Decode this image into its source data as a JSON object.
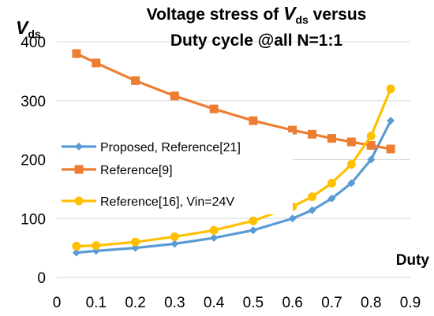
{
  "chart_data": {
    "type": "line",
    "title_line1": "Voltage stress of ",
    "title_var": "V",
    "title_sub": "ds",
    "title_line1_end": " versus",
    "title_line2": "Duty cycle @all N=1:1",
    "ylabel_var": "V",
    "ylabel_sub": "ds",
    "xlabel": "Duty",
    "xlim": [
      0,
      0.9
    ],
    "ylim": [
      0,
      400
    ],
    "xticks": [
      "0",
      "0.1",
      "0.2",
      "0.3",
      "0.4",
      "0.5",
      "0.6",
      "0.7",
      "0.8",
      "0.9"
    ],
    "yticks": [
      "0",
      "100",
      "200",
      "300",
      "400"
    ],
    "grid": "horizontal",
    "series": [
      {
        "name": "Proposed, Reference[21]",
        "color": "#5B9BD5",
        "marker": "diamond",
        "x": [
          0.05,
          0.1,
          0.2,
          0.3,
          0.4,
          0.5,
          0.6,
          0.65,
          0.7,
          0.75,
          0.8,
          0.85
        ],
        "y": [
          42,
          45,
          50,
          57,
          67,
          80,
          100,
          114,
          134,
          160,
          200,
          266
        ]
      },
      {
        "name": "Reference[9]",
        "color": "#ED7D31",
        "marker": "square",
        "x": [
          0.05,
          0.1,
          0.2,
          0.3,
          0.4,
          0.5,
          0.6,
          0.65,
          0.7,
          0.75,
          0.8,
          0.85
        ],
        "y": [
          380,
          364,
          334,
          308,
          286,
          266,
          250,
          243,
          236,
          230,
          224,
          218
        ]
      },
      {
        "name": "Reference[16], Vin=24V",
        "color": "#FFC000",
        "marker": "circle",
        "x": [
          0.05,
          0.1,
          0.2,
          0.3,
          0.4,
          0.5,
          0.6,
          0.65,
          0.7,
          0.75,
          0.8,
          0.85
        ],
        "y": [
          53,
          54,
          60,
          69,
          80,
          96,
          120,
          137,
          160,
          192,
          240,
          320
        ]
      }
    ]
  }
}
